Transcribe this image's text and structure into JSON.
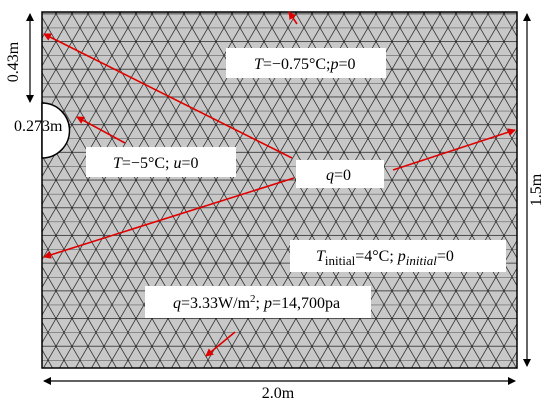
{
  "labels": {
    "hole_height": "0.43m",
    "hole_radius": "0.273m",
    "height": "1.5m",
    "width": "2.0m"
  },
  "conditions": [
    {
      "parts": [
        "T",
        "=−0.75°C;",
        "p",
        "=0"
      ]
    },
    {
      "parts": [
        "T",
        "=−5°C; ",
        "u",
        "=0"
      ]
    },
    {
      "parts": [
        "q",
        "=0"
      ]
    },
    {
      "parts": [
        "T",
        "initial",
        "=4°C; ",
        "p",
        "initial",
        "=0"
      ]
    },
    {
      "parts": [
        "q",
        "=3.33W/m",
        "2",
        "; ",
        "p",
        "=14,700pa"
      ]
    }
  ]
}
